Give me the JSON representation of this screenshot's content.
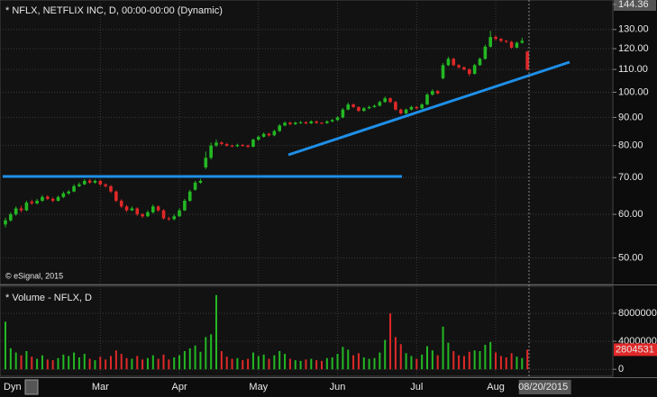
{
  "chart_data": {
    "type": "candlestick",
    "title": "* NFLX, NETFLIX INC, D, 00:00-00:00 (Dynamic)",
    "source": "© eSignal, 2015",
    "interval_label": "Dyn",
    "log_scale": true,
    "grid": true,
    "up_color": "#23b823",
    "down_color": "#e02828",
    "ylim": [
      44.9,
      144.36
    ],
    "yticks": [
      {
        "value": 50,
        "label": "50.00"
      },
      {
        "value": 60,
        "label": "60.00"
      },
      {
        "value": 70,
        "label": "70.00"
      },
      {
        "value": 80,
        "label": "80.00"
      },
      {
        "value": 90,
        "label": "90.00"
      },
      {
        "value": 100,
        "label": "100.00"
      },
      {
        "value": 110,
        "label": "110.00"
      },
      {
        "value": 120,
        "label": "120.00"
      },
      {
        "value": 130,
        "label": "130.00"
      },
      144.36
    ],
    "categories": [
      null,
      null,
      null,
      null,
      null,
      null,
      null,
      null,
      null,
      null,
      null,
      null,
      null,
      null,
      null,
      null,
      null,
      null,
      "Mar",
      null,
      null,
      null,
      null,
      null,
      null,
      null,
      null,
      null,
      null,
      null,
      null,
      null,
      null,
      "Apr",
      null,
      null,
      null,
      null,
      null,
      null,
      null,
      null,
      null,
      null,
      null,
      null,
      null,
      null,
      "May",
      null,
      null,
      null,
      null,
      null,
      null,
      null,
      null,
      null,
      null,
      null,
      null,
      null,
      null,
      "Jun",
      null,
      null,
      null,
      null,
      null,
      null,
      null,
      null,
      null,
      null,
      null,
      null,
      null,
      null,
      "Jul",
      null,
      null,
      null,
      null,
      null,
      null,
      null,
      null,
      null,
      null,
      null,
      null,
      null,
      null,
      "Aug",
      null,
      null,
      null,
      null,
      null,
      null,
      null,
      null,
      "08/20/2015"
    ],
    "ohlc": [
      [
        57.5,
        59.2,
        56.8,
        58.5
      ],
      [
        58.5,
        60.5,
        58.2,
        60
      ],
      [
        60,
        62,
        59.6,
        61.5
      ],
      [
        61.5,
        62.2,
        60.5,
        61
      ],
      [
        61,
        63.5,
        60.8,
        63
      ],
      [
        63.2,
        63.8,
        62.4,
        62.8
      ],
      [
        62.8,
        64,
        62.5,
        63.5
      ],
      [
        63.5,
        65,
        63.2,
        64.5
      ],
      [
        64.6,
        65,
        63.7,
        64
      ],
      [
        64,
        64.4,
        63.1,
        63.5
      ],
      [
        63.5,
        64.9,
        63.3,
        64.5
      ],
      [
        64.5,
        66,
        64.2,
        65.5
      ],
      [
        65.5,
        66.4,
        65.1,
        66
      ],
      [
        66,
        68,
        65.8,
        67.5
      ],
      [
        67.5,
        68.6,
        67.2,
        68
      ],
      [
        68,
        69.5,
        67.8,
        69
      ],
      [
        69.1,
        69.6,
        68.2,
        68.5
      ],
      [
        68.5,
        69.4,
        68.2,
        69
      ],
      [
        69,
        69.3,
        67.6,
        68
      ],
      [
        68,
        68.3,
        67.1,
        67.5
      ],
      [
        67.5,
        67.8,
        65.6,
        66
      ],
      [
        66,
        66.3,
        63.1,
        63.5
      ],
      [
        63.5,
        63.9,
        61.6,
        62
      ],
      [
        62,
        62.4,
        60.6,
        61
      ],
      [
        61,
        62,
        60.8,
        61.5
      ],
      [
        61.5,
        61.8,
        59.6,
        60
      ],
      [
        60,
        60.3,
        59.1,
        59.5
      ],
      [
        59.5,
        61,
        59.3,
        60.5
      ],
      [
        60.5,
        62.5,
        60.2,
        62
      ],
      [
        62,
        62.3,
        60.6,
        61
      ],
      [
        61,
        61.3,
        58.7,
        59
      ],
      [
        59,
        59.4,
        58.4,
        58.8
      ],
      [
        58.8,
        60,
        58.5,
        59.5
      ],
      [
        59.5,
        61.5,
        59.3,
        61
      ],
      [
        61,
        64,
        60.8,
        63.5
      ],
      [
        63.5,
        66.5,
        63.2,
        66
      ],
      [
        66.5,
        69,
        66.2,
        68.5
      ],
      [
        68.5,
        69.6,
        68.2,
        69
      ],
      [
        73,
        78,
        72.5,
        76
      ],
      [
        76,
        81,
        75.5,
        80
      ],
      [
        80,
        82,
        79.5,
        81
      ],
      [
        81,
        81.4,
        80.1,
        80.5
      ],
      [
        80.5,
        80.9,
        79.6,
        80
      ],
      [
        80,
        80.3,
        79.4,
        79.8
      ],
      [
        79.8,
        80.6,
        79.5,
        80.2
      ],
      [
        80.2,
        80.5,
        79.6,
        80
      ],
      [
        80,
        80.3,
        79.2,
        79.6
      ],
      [
        79.6,
        82.4,
        79.4,
        82
      ],
      [
        82,
        83.4,
        81.7,
        83
      ],
      [
        83,
        84.5,
        82.7,
        84
      ],
      [
        84,
        84.4,
        83.1,
        83.5
      ],
      [
        83.5,
        85.5,
        83.2,
        85
      ],
      [
        85,
        87.5,
        84.7,
        87
      ],
      [
        87,
        88.5,
        86.7,
        88
      ],
      [
        88,
        88.4,
        87.1,
        87.5
      ],
      [
        87.5,
        88.4,
        87.2,
        88
      ],
      [
        88,
        88.6,
        87.6,
        88.2
      ],
      [
        88.2,
        88.5,
        87.4,
        87.8
      ],
      [
        87.8,
        88.9,
        87.5,
        88.5
      ],
      [
        88.5,
        88.8,
        87.6,
        88
      ],
      [
        88,
        88.3,
        87.5,
        87.9
      ],
      [
        87.9,
        88.9,
        87.6,
        88.5
      ],
      [
        88.5,
        89.4,
        88.2,
        89
      ],
      [
        89,
        90.5,
        88.7,
        90
      ],
      [
        90,
        93.6,
        89.7,
        93
      ],
      [
        93,
        95.8,
        92.7,
        95
      ],
      [
        95,
        95.4,
        93.6,
        94
      ],
      [
        94,
        94.3,
        92.1,
        92.5
      ],
      [
        92.5,
        94,
        92.2,
        93.5
      ],
      [
        93.5,
        94.5,
        93.2,
        94
      ],
      [
        94,
        95,
        93.7,
        94.5
      ],
      [
        94.5,
        96.5,
        94.2,
        96
      ],
      [
        96,
        98.2,
        95.7,
        97.5
      ],
      [
        97.5,
        97.9,
        95.6,
        96
      ],
      [
        96,
        96.4,
        92.6,
        93
      ],
      [
        93,
        93.4,
        91.1,
        91.5
      ],
      [
        91.5,
        93.4,
        91.2,
        93
      ],
      [
        93,
        94.5,
        92.7,
        94
      ],
      [
        94,
        94.3,
        93.1,
        93.5
      ],
      [
        93.5,
        95.5,
        93.2,
        95
      ],
      [
        95,
        99.6,
        94.7,
        99
      ],
      [
        99,
        101.2,
        98.6,
        100.5
      ],
      [
        100.5,
        100.9,
        99.1,
        99.5
      ],
      [
        106,
        113,
        105.5,
        112
      ],
      [
        112,
        116,
        111.5,
        115
      ],
      [
        115,
        115.5,
        111.5,
        112
      ],
      [
        112,
        112.5,
        110.4,
        111
      ],
      [
        111,
        111.4,
        109.5,
        110
      ],
      [
        110,
        110.5,
        107,
        108
      ],
      [
        108,
        112.6,
        107.7,
        112
      ],
      [
        112,
        115.6,
        111.7,
        115
      ],
      [
        115,
        122,
        114.6,
        121
      ],
      [
        121,
        129.3,
        120.6,
        126
      ],
      [
        126,
        127,
        124.3,
        125
      ],
      [
        125,
        125.5,
        123.2,
        124
      ],
      [
        124,
        124.5,
        122.8,
        123.5
      ],
      [
        123.5,
        124,
        120,
        120.5
      ],
      [
        120.5,
        123.6,
        120.2,
        123
      ],
      [
        123,
        125.6,
        122.6,
        124
      ],
      [
        118.5,
        119,
        109.5,
        110
      ]
    ],
    "volume": {
      "title": "* Volume - NFLX, D",
      "ylim": [
        -1000000,
        11600000
      ],
      "yticks": [
        0,
        4000000,
        8000000
      ],
      "values": [
        6800000,
        3000000,
        2400000,
        2000000,
        2600000,
        1800000,
        1500000,
        2000000,
        1400000,
        1300000,
        1600000,
        2100000,
        1900000,
        2400000,
        1700000,
        2200000,
        1500000,
        1300000,
        1800000,
        1400000,
        1900000,
        2700000,
        2200000,
        1600000,
        1500000,
        1900000,
        1400000,
        1600000,
        2000000,
        1500000,
        2100000,
        1400000,
        1700000,
        2000000,
        2600000,
        3000000,
        3400000,
        2500000,
        4600000,
        5000000,
        10600000,
        2600000,
        1800000,
        1500000,
        1600000,
        1300000,
        1500000,
        2400000,
        1900000,
        2100000,
        1500000,
        2000000,
        2600000,
        2200000,
        1500000,
        1300000,
        1200000,
        1400000,
        1500000,
        1300000,
        1200000,
        1600000,
        1700000,
        2200000,
        3200000,
        2800000,
        2000000,
        2300000,
        1700000,
        1500000,
        1600000,
        2400000,
        4200000,
        8000000,
        4600000,
        3600000,
        2300000,
        1900000,
        1500000,
        2100000,
        3300000,
        2700000,
        2000000,
        6100000,
        3800000,
        2600000,
        2000000,
        1900000,
        2500000,
        2700000,
        2600000,
        3500000,
        3900000,
        2400000,
        1900000,
        1700000,
        2300000,
        1800000,
        1600000,
        2804531
      ]
    }
  }
}
